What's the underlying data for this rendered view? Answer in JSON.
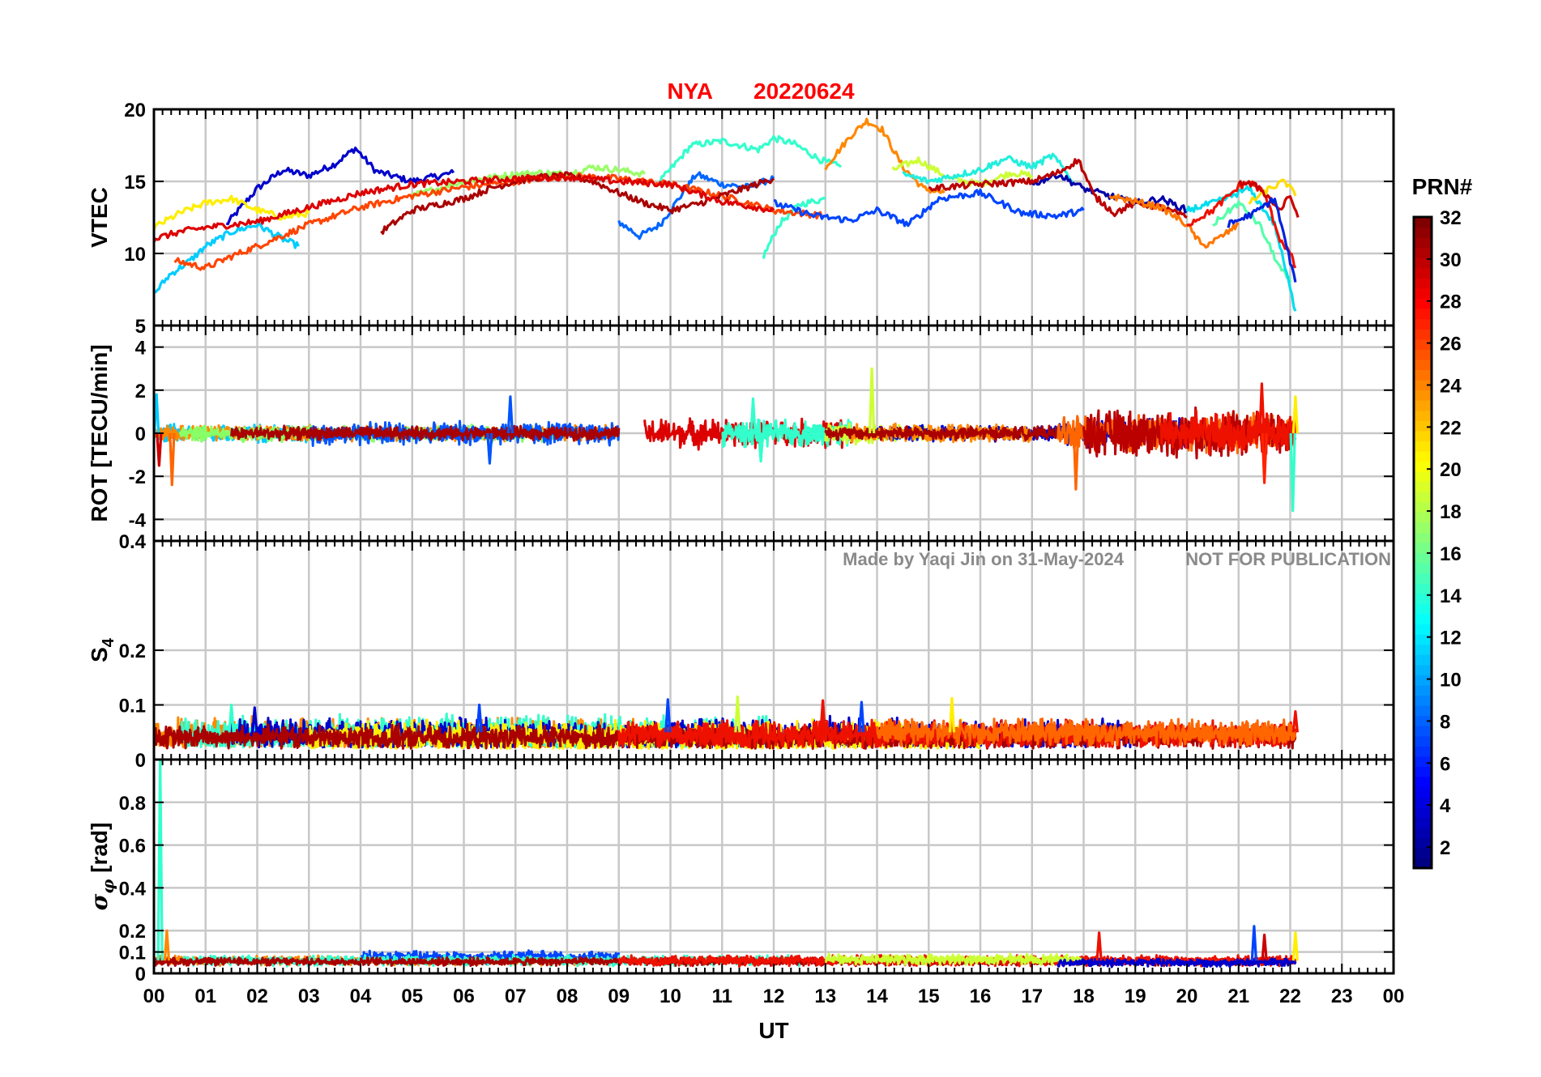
{
  "title": {
    "station": "NYA",
    "date": "20220624",
    "color": "#ff0000"
  },
  "watermark": {
    "made_by": "Made by Yaqi Jin on 31-May-2024",
    "notice": "NOT FOR PUBLICATION"
  },
  "colorbar": {
    "label": "PRN#",
    "ticks": [
      "2",
      "4",
      "6",
      "8",
      "10",
      "12",
      "14",
      "16",
      "18",
      "20",
      "22",
      "24",
      "26",
      "28",
      "30",
      "32"
    ],
    "range": [
      1,
      32
    ],
    "colormap": "jet"
  },
  "chart_data": [
    {
      "type": "line",
      "panel": "vtec",
      "ylabel": "VTEC",
      "ylim": [
        5,
        20
      ],
      "yticks": [
        "5",
        "10",
        "15",
        "20"
      ],
      "grid": true,
      "series": [
        {
          "prn": 4,
          "color": "#0000cc",
          "x": [
            1.4,
            2.0,
            2.5,
            3.0,
            3.5,
            3.9,
            4.3,
            5.0,
            5.8
          ],
          "values": [
            12.0,
            14.5,
            15.8,
            15.4,
            16.2,
            17.3,
            15.7,
            15.0,
            15.6
          ]
        },
        {
          "prn": 7,
          "color": "#0066ff",
          "x": [
            9.0,
            9.4,
            9.8,
            10.2,
            10.5,
            11.0,
            11.5,
            12.0
          ],
          "values": [
            12.2,
            11.2,
            12.0,
            14.0,
            15.5,
            14.8,
            14.6,
            15.2
          ]
        },
        {
          "prn": 13,
          "color": "#33ffcc",
          "x": [
            9.8,
            10.4,
            11.0,
            11.7,
            12.0,
            12.4,
            12.9,
            13.3
          ],
          "values": [
            15.0,
            17.5,
            17.8,
            17.2,
            18.0,
            17.6,
            16.5,
            16.0
          ]
        },
        {
          "prn": 13,
          "color": "#33ffcc",
          "x": [
            11.8,
            12.1,
            12.5,
            13.0
          ],
          "values": [
            9.8,
            12.0,
            13.4,
            13.8
          ]
        },
        {
          "prn": 24,
          "color": "#ff8800",
          "x": [
            13.0,
            13.5,
            13.8,
            14.1,
            14.5,
            14.9,
            15.3
          ],
          "values": [
            16.0,
            18.2,
            19.2,
            18.6,
            16.0,
            14.5,
            14.2
          ]
        },
        {
          "prn": 19,
          "color": "#ccff33",
          "x": [
            14.3,
            14.8,
            15.4,
            16.0,
            16.6,
            17.0
          ],
          "values": [
            15.8,
            16.5,
            15.2,
            14.8,
            15.6,
            15.4
          ]
        },
        {
          "prn": 11,
          "color": "#00ccff",
          "x": [
            0.0,
            0.3,
            0.7,
            1.0,
            1.5,
            2.0,
            2.5,
            2.8
          ],
          "values": [
            7.2,
            8.5,
            9.5,
            10.5,
            11.5,
            12.0,
            11.0,
            10.5
          ]
        },
        {
          "prn": 20,
          "color": "#ffee00",
          "x": [
            0.0,
            0.5,
            1.0,
            1.5,
            2.0,
            2.5,
            3.0
          ],
          "values": [
            11.8,
            12.8,
            13.5,
            13.8,
            13.0,
            12.5,
            12.8
          ]
        },
        {
          "prn": 18,
          "color": "#99ff66",
          "x": [
            5.0,
            6.0,
            7.0,
            7.5,
            8.0,
            8.5,
            9.0,
            9.5
          ],
          "values": [
            14.0,
            15.0,
            15.5,
            15.6,
            15.5,
            16.0,
            15.8,
            15.5
          ]
        },
        {
          "prn": 26,
          "color": "#ff4400",
          "x": [
            0.4,
            1.0,
            1.5,
            2.0,
            3.0,
            4.0,
            5.0,
            6.0,
            7.0,
            8.0,
            9.0,
            10.0,
            11.0,
            12.0,
            13.0
          ],
          "values": [
            9.5,
            9.0,
            9.8,
            10.5,
            12.0,
            13.2,
            14.0,
            14.6,
            15.0,
            15.4,
            15.2,
            14.8,
            14.0,
            13.0,
            12.6
          ]
        },
        {
          "prn": 31,
          "color": "#aa0000",
          "x": [
            4.4,
            5.0,
            6.0,
            6.5,
            7.0,
            7.5,
            8.0,
            8.5,
            9.0,
            9.5,
            10.0,
            10.5,
            11.0,
            11.5,
            12.0
          ],
          "values": [
            11.5,
            13.0,
            13.8,
            14.5,
            15.0,
            15.3,
            15.4,
            15.0,
            14.2,
            13.5,
            13.0,
            13.4,
            14.0,
            14.6,
            15.2
          ]
        },
        {
          "prn": 28,
          "color": "#dd0000",
          "x": [
            0.0,
            0.5,
            1.0,
            2.0,
            3.0,
            4.0,
            5.0,
            6.0,
            7.0,
            8.0,
            9.0,
            10.0,
            11.0,
            12.0
          ],
          "values": [
            11.0,
            11.5,
            11.8,
            12.2,
            13.2,
            14.2,
            14.8,
            15.0,
            15.2,
            15.3,
            15.0,
            14.8,
            13.6,
            13.0
          ]
        },
        {
          "prn": 9,
          "color": "#0044ff",
          "x": [
            12.0,
            12.8,
            13.5,
            14.0,
            14.6,
            15.2,
            16.0,
            16.8,
            17.5,
            18.0
          ],
          "values": [
            13.5,
            12.6,
            12.3,
            13.0,
            12.0,
            13.8,
            14.2,
            12.8,
            12.6,
            13.0
          ]
        },
        {
          "prn": 14,
          "color": "#22eedd",
          "x": [
            14.5,
            15.0,
            16.0,
            16.5,
            17.0,
            17.4,
            17.8
          ],
          "values": [
            15.5,
            15.0,
            15.8,
            16.6,
            16.0,
            16.8,
            15.0
          ]
        },
        {
          "prn": 2,
          "color": "#0000aa",
          "x": [
            17.0,
            17.5,
            18.0,
            18.5,
            19.0,
            19.5,
            20.0
          ],
          "values": [
            14.8,
            15.5,
            14.5,
            14.0,
            13.5,
            13.8,
            13.0
          ]
        },
        {
          "prn": 30,
          "color": "#bb0000",
          "x": [
            15.0,
            16.0,
            17.0,
            17.5,
            17.9,
            18.2,
            18.6,
            19.0,
            19.5,
            20.0
          ],
          "values": [
            14.5,
            14.8,
            15.0,
            15.6,
            16.5,
            14.0,
            12.8,
            13.5,
            13.2,
            12.5
          ]
        },
        {
          "prn": 24,
          "color": "#ff7700",
          "x": [
            18.5,
            19.0,
            19.5,
            20.0,
            20.3,
            20.6,
            21.0
          ],
          "values": [
            14.0,
            13.6,
            13.2,
            12.0,
            10.5,
            11.0,
            12.0
          ]
        },
        {
          "prn": 15,
          "color": "#55ffaa",
          "x": [
            20.5,
            21.0,
            21.4,
            21.8,
            22.0
          ],
          "values": [
            12.0,
            13.5,
            12.0,
            9.0,
            8.0
          ]
        },
        {
          "prn": 12,
          "color": "#00ddee",
          "x": [
            20.0,
            20.6,
            21.2,
            21.7,
            22.1
          ],
          "values": [
            13.0,
            13.6,
            14.5,
            12.0,
            6.0
          ]
        },
        {
          "prn": 27,
          "color": "#ee1100",
          "x": [
            20.0,
            20.5,
            21.0,
            21.2,
            21.5,
            21.8,
            22.0,
            22.1
          ],
          "values": [
            12.0,
            13.0,
            14.6,
            15.0,
            14.2,
            11.0,
            10.0,
            9.0
          ]
        },
        {
          "prn": 21,
          "color": "#ffdd00",
          "x": [
            21.2,
            21.6,
            21.9,
            22.1
          ],
          "values": [
            13.5,
            14.5,
            15.0,
            14.0
          ]
        },
        {
          "prn": 29,
          "color": "#cc0000",
          "x": [
            21.0,
            21.4,
            21.8,
            22.0,
            22.15
          ],
          "values": [
            15.0,
            14.6,
            13.0,
            14.0,
            12.5
          ]
        },
        {
          "prn": 5,
          "color": "#0022dd",
          "x": [
            20.8,
            21.3,
            21.7,
            22.1
          ],
          "values": [
            12.0,
            12.8,
            13.8,
            8.0
          ]
        }
      ]
    },
    {
      "type": "line",
      "panel": "rot",
      "ylabel": "ROT [TECU/min]",
      "ylim": [
        -5,
        5
      ],
      "yticks": [
        "-4",
        "-2",
        "0",
        "2",
        "4"
      ],
      "grid": true,
      "noise_series": [
        {
          "color": "#00ccff",
          "x0": 0.0,
          "x1": 3.0,
          "amp": 0.35
        },
        {
          "color": "#ff8800",
          "x0": 0.0,
          "x1": 9.0,
          "amp": 0.3
        },
        {
          "color": "#88ff66",
          "x0": 0.5,
          "x1": 8.0,
          "amp": 0.3
        },
        {
          "color": "#0055ff",
          "x0": 3.0,
          "x1": 9.0,
          "amp": 0.45
        },
        {
          "color": "#aa0000",
          "x0": 1.5,
          "x1": 9.0,
          "amp": 0.25
        },
        {
          "color": "#dd0000",
          "x0": 9.5,
          "x1": 13.5,
          "amp": 0.55
        },
        {
          "color": "#33ffcc",
          "x0": 11.0,
          "x1": 13.5,
          "amp": 0.5
        },
        {
          "color": "#ccff33",
          "x0": 13.0,
          "x1": 15.0,
          "amp": 0.4
        },
        {
          "color": "#0000cc",
          "x0": 14.0,
          "x1": 18.0,
          "amp": 0.3
        },
        {
          "color": "#ff8800",
          "x0": 13.5,
          "x1": 17.0,
          "amp": 0.35
        },
        {
          "color": "#aa0000",
          "x0": 13.0,
          "x1": 18.0,
          "amp": 0.25
        },
        {
          "color": "#0000cc",
          "x0": 17.5,
          "x1": 21.0,
          "amp": 0.55
        },
        {
          "color": "#ff6600",
          "x0": 17.5,
          "x1": 22.1,
          "amp": 0.7
        },
        {
          "color": "#bb0000",
          "x0": 18.0,
          "x1": 22.1,
          "amp": 0.9
        },
        {
          "color": "#ee1100",
          "x0": 19.5,
          "x1": 22.1,
          "amp": 0.8
        }
      ],
      "spikes": [
        {
          "color": "#cc0000",
          "x": 0.1,
          "y": -1.5
        },
        {
          "color": "#ff6600",
          "x": 0.35,
          "y": -2.4
        },
        {
          "color": "#00ccff",
          "x": 0.05,
          "y": 1.8
        },
        {
          "color": "#0055ff",
          "x": 6.5,
          "y": -1.4
        },
        {
          "color": "#0055ff",
          "x": 6.9,
          "y": 1.7
        },
        {
          "color": "#33ffcc",
          "x": 11.6,
          "y": 1.6
        },
        {
          "color": "#33ffcc",
          "x": 11.75,
          "y": -1.3
        },
        {
          "color": "#ccff33",
          "x": 13.9,
          "y": 3.0
        },
        {
          "color": "#ff6600",
          "x": 17.85,
          "y": -2.6
        },
        {
          "color": "#ee1100",
          "x": 21.45,
          "y": 2.3
        },
        {
          "color": "#ff2200",
          "x": 21.5,
          "y": -2.3
        },
        {
          "color": "#33ffcc",
          "x": 22.05,
          "y": -3.6
        },
        {
          "color": "#ffee00",
          "x": 22.1,
          "y": 1.7
        }
      ]
    },
    {
      "type": "line",
      "panel": "s4",
      "ylabel": "S4",
      "ylim": [
        0,
        0.4
      ],
      "yticks": [
        "0",
        "0.1",
        "0.2",
        "0.4"
      ],
      "grid": true,
      "noise_series": [
        {
          "color": "#ff8800",
          "x0": 0.0,
          "x1": 10.0,
          "base": 0.045,
          "amp": 0.025
        },
        {
          "color": "#33ffcc",
          "x0": 0.5,
          "x1": 12.0,
          "base": 0.045,
          "amp": 0.03
        },
        {
          "color": "#0000cc",
          "x0": 1.5,
          "x1": 19.0,
          "base": 0.045,
          "amp": 0.025
        },
        {
          "color": "#ffee00",
          "x0": 3.0,
          "x1": 16.0,
          "base": 0.04,
          "amp": 0.025
        },
        {
          "color": "#aa0000",
          "x0": 0.0,
          "x1": 22.1,
          "base": 0.04,
          "amp": 0.018
        },
        {
          "color": "#ee1100",
          "x0": 9.0,
          "x1": 22.1,
          "base": 0.045,
          "amp": 0.022
        },
        {
          "color": "#ff6600",
          "x0": 14.0,
          "x1": 22.1,
          "base": 0.05,
          "amp": 0.02
        }
      ],
      "spikes": [
        {
          "color": "#33ffcc",
          "x": 1.5,
          "y": 0.1
        },
        {
          "color": "#0000cc",
          "x": 1.95,
          "y": 0.095
        },
        {
          "color": "#0044ff",
          "x": 6.3,
          "y": 0.1
        },
        {
          "color": "#0044ff",
          "x": 9.95,
          "y": 0.11
        },
        {
          "color": "#ccff33",
          "x": 11.3,
          "y": 0.115
        },
        {
          "color": "#ee1100",
          "x": 12.95,
          "y": 0.108
        },
        {
          "color": "#0044ff",
          "x": 13.7,
          "y": 0.105
        },
        {
          "color": "#ffee00",
          "x": 15.45,
          "y": 0.112
        },
        {
          "color": "#ee1100",
          "x": 22.1,
          "y": 0.088
        }
      ]
    },
    {
      "type": "line",
      "panel": "sigma_phi",
      "ylabel": "σφ [rad]",
      "ylim": [
        0,
        1
      ],
      "yticks": [
        "0",
        "0.1",
        "0.2",
        "0.4",
        "0.6",
        "0.8"
      ],
      "grid": true,
      "noise_series": [
        {
          "color": "#ff8800",
          "x0": 0.0,
          "x1": 9.0,
          "base": 0.06,
          "amp": 0.018
        },
        {
          "color": "#0044ff",
          "x0": 4.0,
          "x1": 9.0,
          "base": 0.075,
          "amp": 0.025
        },
        {
          "color": "#33ffcc",
          "x0": 0.5,
          "x1": 12.5,
          "base": 0.06,
          "amp": 0.02
        },
        {
          "color": "#aa0000",
          "x0": 0.0,
          "x1": 22.1,
          "base": 0.055,
          "amp": 0.015
        },
        {
          "color": "#ee1100",
          "x0": 9.0,
          "x1": 22.1,
          "base": 0.06,
          "amp": 0.02
        },
        {
          "color": "#ccff33",
          "x0": 13.0,
          "x1": 18.0,
          "base": 0.065,
          "amp": 0.02
        },
        {
          "color": "#0000cc",
          "x0": 17.5,
          "x1": 22.1,
          "base": 0.05,
          "amp": 0.015
        }
      ],
      "spikes": [
        {
          "color": "#33ffcc",
          "x": 0.12,
          "y": 1.0
        },
        {
          "color": "#ff8800",
          "x": 0.25,
          "y": 0.2
        },
        {
          "color": "#ee1100",
          "x": 18.3,
          "y": 0.19
        },
        {
          "color": "#0044ff",
          "x": 21.3,
          "y": 0.22
        },
        {
          "color": "#cc0000",
          "x": 21.5,
          "y": 0.18
        },
        {
          "color": "#ffee00",
          "x": 22.1,
          "y": 0.19
        }
      ]
    }
  ],
  "xaxis": {
    "label": "UT",
    "xlim": [
      0,
      24
    ],
    "ticks": [
      "00",
      "01",
      "02",
      "03",
      "04",
      "05",
      "06",
      "07",
      "08",
      "09",
      "10",
      "11",
      "12",
      "13",
      "14",
      "15",
      "16",
      "17",
      "18",
      "19",
      "20",
      "21",
      "22",
      "23",
      "00"
    ]
  }
}
